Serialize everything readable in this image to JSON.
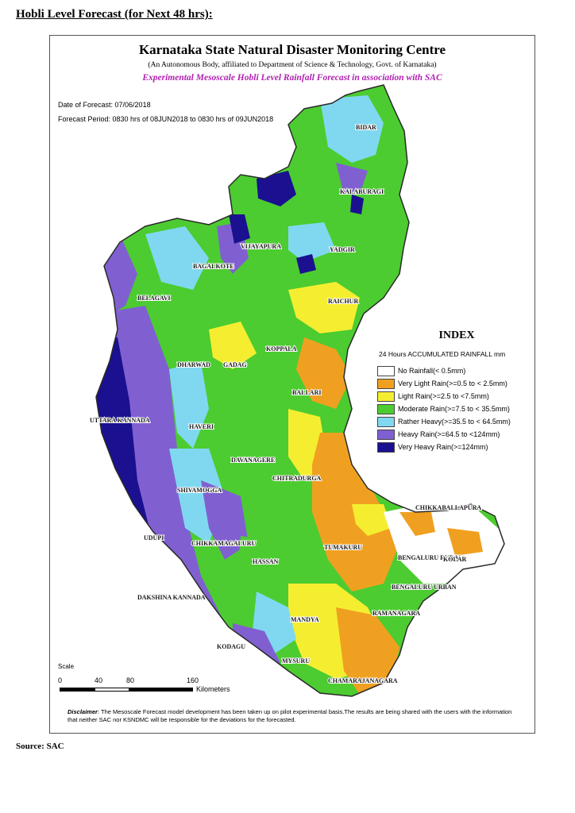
{
  "heading": "Hobli Level Forecast (for Next 48 hrs):",
  "map": {
    "title": "Karnataka State Natural Disaster Monitoring Centre",
    "subtitle": "(An Autonomous Body, affiliated to Department of Science & Technology, Govt. of Karnataka)",
    "subtitle2": "Experimental Mesoscale Hobli Level Rainfall Forecast in association with SAC",
    "date_of_forecast": "Date of Forecast: 07/06/2018",
    "forecast_period": "Forecast Period: 0830 hrs of 08JUN2018 to 0830 hrs of 09JUN2018",
    "districts": [
      "BIDAR",
      "KALABURAGI",
      "VIJAYAPURA",
      "YADGIR",
      "BAGALKOTE",
      "BELAGAVI",
      "RAICHUR",
      "KOPPALA",
      "DHARWAD",
      "GADAG",
      "BALLARI",
      "UTTARA KANNADA",
      "HAVERI",
      "DAVANAGERE",
      "CHITRADURGA",
      "SHIVAMOGGA",
      "CHIKKABALLAPURA",
      "UDUPI",
      "CHIKKAMAGALURU",
      "TUMAKURU",
      "BENGALURU RURAL",
      "KOLAR",
      "HASSAN",
      "BENGALURU URBAN",
      "DAKSHINA KANNADA",
      "MANDYA",
      "RAMANAGARA",
      "KODAGU",
      "MYSURU",
      "CHAMARAJANAGARA"
    ]
  },
  "legend": {
    "title": "INDEX",
    "subtitle": "24 Hours ACCUMULATED RAINFALL mm",
    "items": [
      {
        "label": "No Rainfall(< 0.5mm)",
        "color": "#ffffff"
      },
      {
        "label": "Very Light Rain(>=0.5 to < 2.5mm)",
        "color": "#f0a020"
      },
      {
        "label": "Light Rain(>=2.5 to <7.5mm)",
        "color": "#f5ee30"
      },
      {
        "label": "Moderate Rain(>=7.5 to < 35.5mm)",
        "color": "#4ccc30"
      },
      {
        "label": "Rather Heavy(>=35.5 to < 64.5mm)",
        "color": "#80d8f0"
      },
      {
        "label": "Heavy Rain(>=64.5 to <124mm)",
        "color": "#8060d0"
      },
      {
        "label": "Very Heavy Rain(>=124mm)",
        "color": "#1a1090"
      }
    ]
  },
  "scale": {
    "label": "Scale",
    "ticks": [
      "0",
      "40",
      "80",
      "160"
    ],
    "unit": "Kilometers"
  },
  "disclaimer": {
    "label": "Disclaimer",
    "text": ": The Mesoscale Forecast model development has been taken up on pilot experimental basis.The results are being shared with the users with the information that neither SAC nor KSNDMC will be responsible for the deviations for the forecasted."
  },
  "source": "Source: SAC"
}
